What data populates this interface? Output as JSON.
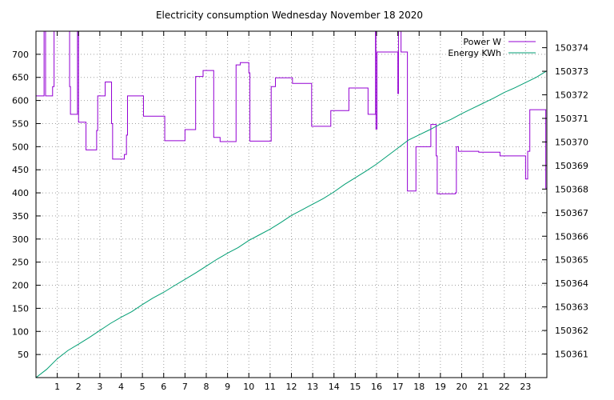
{
  "chart_data": {
    "type": "line",
    "title": "Electricity consumption Wednesday November 18 2020",
    "x": {
      "range": [
        0,
        24
      ],
      "ticks": [
        1,
        2,
        3,
        4,
        5,
        6,
        7,
        8,
        9,
        10,
        11,
        12,
        13,
        14,
        15,
        16,
        17,
        18,
        19,
        20,
        21,
        22,
        23
      ],
      "tick_labels": [
        "1",
        "2",
        "3",
        "4",
        "5",
        "6",
        "7",
        "8",
        "9",
        "10",
        "11",
        "12",
        "13",
        "14",
        "15",
        "16",
        "17",
        "18",
        "19",
        "20",
        "21",
        "22",
        "23"
      ]
    },
    "y_left": {
      "range": [
        0,
        750
      ],
      "ticks": [
        50,
        100,
        150,
        200,
        250,
        300,
        350,
        400,
        450,
        500,
        550,
        600,
        650,
        700
      ],
      "tick_labels": [
        "50",
        "100",
        "150",
        "200",
        "250",
        "300",
        "350",
        "400",
        "450",
        "500",
        "550",
        "600",
        "650",
        "700"
      ]
    },
    "y_right": {
      "range": [
        150360,
        150374.7
      ],
      "ticks": [
        150361,
        150362,
        150363,
        150364,
        150365,
        150366,
        150367,
        150368,
        150369,
        150370,
        150371,
        150372,
        150373,
        150374
      ],
      "tick_labels": [
        "150361",
        "150362",
        "150363",
        "150364",
        "150365",
        "150366",
        "150367",
        "150368",
        "150369",
        "150370",
        "150371",
        "150372",
        "150373",
        "150374"
      ]
    },
    "grid": true,
    "legend_position": "top-right",
    "series": [
      {
        "name": "Power W",
        "color": "#9400d3",
        "axis": "left",
        "style": "steps",
        "points": [
          [
            0,
            610
          ],
          [
            0.38,
            610
          ],
          [
            0.38,
            750
          ],
          [
            0.45,
            750
          ],
          [
            0.45,
            610
          ],
          [
            0.78,
            610
          ],
          [
            0.78,
            630
          ],
          [
            0.85,
            630
          ],
          [
            0.85,
            750
          ],
          [
            1.58,
            750
          ],
          [
            1.58,
            630
          ],
          [
            1.62,
            630
          ],
          [
            1.62,
            570
          ],
          [
            1.95,
            570
          ],
          [
            1.95,
            750
          ],
          [
            2.0,
            750
          ],
          [
            2.0,
            553
          ],
          [
            2.35,
            553
          ],
          [
            2.35,
            493
          ],
          [
            2.85,
            493
          ],
          [
            2.85,
            535
          ],
          [
            2.9,
            535
          ],
          [
            2.9,
            610
          ],
          [
            3.25,
            610
          ],
          [
            3.25,
            640
          ],
          [
            3.55,
            640
          ],
          [
            3.55,
            550
          ],
          [
            3.6,
            550
          ],
          [
            3.6,
            473
          ],
          [
            4.15,
            473
          ],
          [
            4.15,
            483
          ],
          [
            4.25,
            483
          ],
          [
            4.25,
            525
          ],
          [
            4.3,
            525
          ],
          [
            4.3,
            610
          ],
          [
            5.05,
            610
          ],
          [
            5.05,
            566
          ],
          [
            6.05,
            566
          ],
          [
            6.05,
            513
          ],
          [
            7.0,
            513
          ],
          [
            7.0,
            537
          ],
          [
            7.5,
            537
          ],
          [
            7.5,
            652
          ],
          [
            7.85,
            652
          ],
          [
            7.85,
            665
          ],
          [
            8.35,
            665
          ],
          [
            8.35,
            520
          ],
          [
            8.65,
            520
          ],
          [
            8.65,
            511
          ],
          [
            9.4,
            511
          ],
          [
            9.4,
            677
          ],
          [
            9.6,
            677
          ],
          [
            9.6,
            682
          ],
          [
            10.0,
            682
          ],
          [
            10.0,
            660
          ],
          [
            10.05,
            660
          ],
          [
            10.05,
            512
          ],
          [
            11.05,
            512
          ],
          [
            11.05,
            630
          ],
          [
            11.25,
            630
          ],
          [
            11.25,
            649
          ],
          [
            12.05,
            649
          ],
          [
            12.05,
            637
          ],
          [
            12.95,
            637
          ],
          [
            12.95,
            544
          ],
          [
            13.85,
            544
          ],
          [
            13.85,
            578
          ],
          [
            14.7,
            578
          ],
          [
            14.7,
            627
          ],
          [
            15.6,
            627
          ],
          [
            15.6,
            570
          ],
          [
            15.95,
            570
          ],
          [
            15.95,
            750
          ],
          [
            15.97,
            750
          ],
          [
            15.97,
            538
          ],
          [
            16.02,
            538
          ],
          [
            16.02,
            705
          ],
          [
            17.0,
            705
          ],
          [
            17.0,
            615
          ],
          [
            17.03,
            615
          ],
          [
            17.03,
            750
          ],
          [
            17.15,
            750
          ],
          [
            17.15,
            705
          ],
          [
            17.45,
            705
          ],
          [
            17.45,
            404
          ],
          [
            17.85,
            404
          ],
          [
            17.85,
            500
          ],
          [
            18.55,
            500
          ],
          [
            18.55,
            548
          ],
          [
            18.8,
            548
          ],
          [
            18.8,
            480
          ],
          [
            18.85,
            480
          ],
          [
            18.85,
            398
          ],
          [
            19.7,
            398
          ],
          [
            19.7,
            400
          ],
          [
            19.75,
            400
          ],
          [
            19.75,
            500
          ],
          [
            19.85,
            500
          ],
          [
            19.85,
            490
          ],
          [
            20.8,
            490
          ],
          [
            20.8,
            488
          ],
          [
            21.8,
            488
          ],
          [
            21.8,
            480
          ],
          [
            23.0,
            480
          ],
          [
            23.0,
            430
          ],
          [
            23.1,
            430
          ],
          [
            23.1,
            490
          ],
          [
            23.2,
            490
          ],
          [
            23.2,
            580
          ],
          [
            23.95,
            580
          ],
          [
            23.95,
            410
          ],
          [
            24.0,
            410
          ]
        ]
      },
      {
        "name": "Energy KWh",
        "color": "#009e73",
        "axis": "right",
        "style": "line",
        "points": [
          [
            0,
            150360
          ],
          [
            0.5,
            150360.35
          ],
          [
            1.0,
            150360.8
          ],
          [
            1.5,
            150361.15
          ],
          [
            2.0,
            150361.42
          ],
          [
            2.5,
            150361.7
          ],
          [
            3.0,
            150362
          ],
          [
            3.5,
            150362.3
          ],
          [
            4.0,
            150362.56
          ],
          [
            4.5,
            150362.8
          ],
          [
            5.0,
            150363.1
          ],
          [
            5.5,
            150363.38
          ],
          [
            6.0,
            150363.62
          ],
          [
            6.5,
            150363.9
          ],
          [
            7.0,
            150364.17
          ],
          [
            7.5,
            150364.44
          ],
          [
            8.0,
            150364.73
          ],
          [
            8.5,
            150365.02
          ],
          [
            9.0,
            150365.28
          ],
          [
            9.5,
            150365.52
          ],
          [
            10.0,
            150365.82
          ],
          [
            10.5,
            150366.06
          ],
          [
            11.0,
            150366.3
          ],
          [
            11.5,
            150366.58
          ],
          [
            12.0,
            150366.88
          ],
          [
            12.5,
            150367.12
          ],
          [
            13.0,
            150367.36
          ],
          [
            13.5,
            150367.6
          ],
          [
            14.0,
            150367.88
          ],
          [
            14.5,
            150368.2
          ],
          [
            15.0,
            150368.48
          ],
          [
            15.5,
            150368.76
          ],
          [
            16.0,
            150369.06
          ],
          [
            16.5,
            150369.4
          ],
          [
            17.0,
            150369.74
          ],
          [
            17.5,
            150370.08
          ],
          [
            18.0,
            150370.3
          ],
          [
            18.5,
            150370.52
          ],
          [
            19.0,
            150370.76
          ],
          [
            19.5,
            150370.96
          ],
          [
            20.0,
            150371.2
          ],
          [
            20.5,
            150371.42
          ],
          [
            21.0,
            150371.64
          ],
          [
            21.5,
            150371.86
          ],
          [
            22.0,
            150372.1
          ],
          [
            22.5,
            150372.3
          ],
          [
            23.0,
            150372.52
          ],
          [
            23.5,
            150372.74
          ],
          [
            24.0,
            150373.02
          ]
        ]
      }
    ]
  }
}
